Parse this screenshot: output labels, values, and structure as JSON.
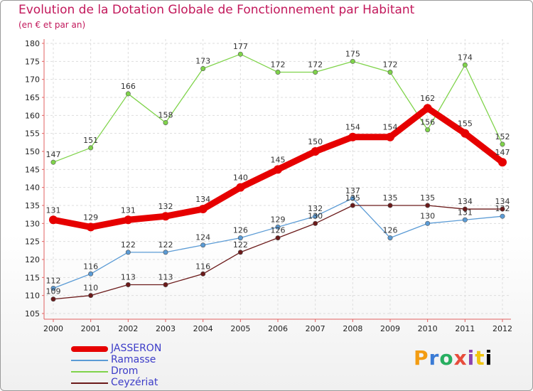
{
  "chart_data": {
    "type": "line",
    "title": "Evolution de la Dotation Globale de Fonctionnement par Habitant",
    "subtitle": "(en € et par an)",
    "categories": [
      "2000",
      "2001",
      "2002",
      "2003",
      "2004",
      "2005",
      "2006",
      "2007",
      "2008",
      "2009",
      "2010",
      "2011",
      "2012"
    ],
    "ylim": [
      105,
      180
    ],
    "yticks": [
      105,
      110,
      115,
      120,
      125,
      130,
      135,
      140,
      145,
      150,
      155,
      160,
      165,
      170,
      175,
      180
    ],
    "series": [
      {
        "name": "JASSERON",
        "color": "#e60000",
        "values": [
          131,
          129,
          131,
          132,
          134,
          140,
          145,
          150,
          154,
          154,
          162,
          155,
          147
        ]
      },
      {
        "name": "Ramasse",
        "color": "#5b9bd5",
        "values": [
          112,
          116,
          122,
          122,
          124,
          126,
          129,
          132,
          137,
          126,
          130,
          131,
          132
        ]
      },
      {
        "name": "Drom",
        "color": "#7fd34a",
        "values": [
          147,
          151,
          166,
          158,
          173,
          177,
          172,
          172,
          175,
          172,
          156,
          174,
          152
        ]
      },
      {
        "name": "Ceyzériat",
        "color": "#6b1a1a",
        "values": [
          109,
          110,
          113,
          113,
          116,
          122,
          126,
          130,
          135,
          135,
          135,
          134,
          134
        ]
      }
    ]
  },
  "logo": {
    "letters": [
      "P",
      "r",
      "o",
      "x",
      "i",
      "t",
      "i"
    ]
  }
}
